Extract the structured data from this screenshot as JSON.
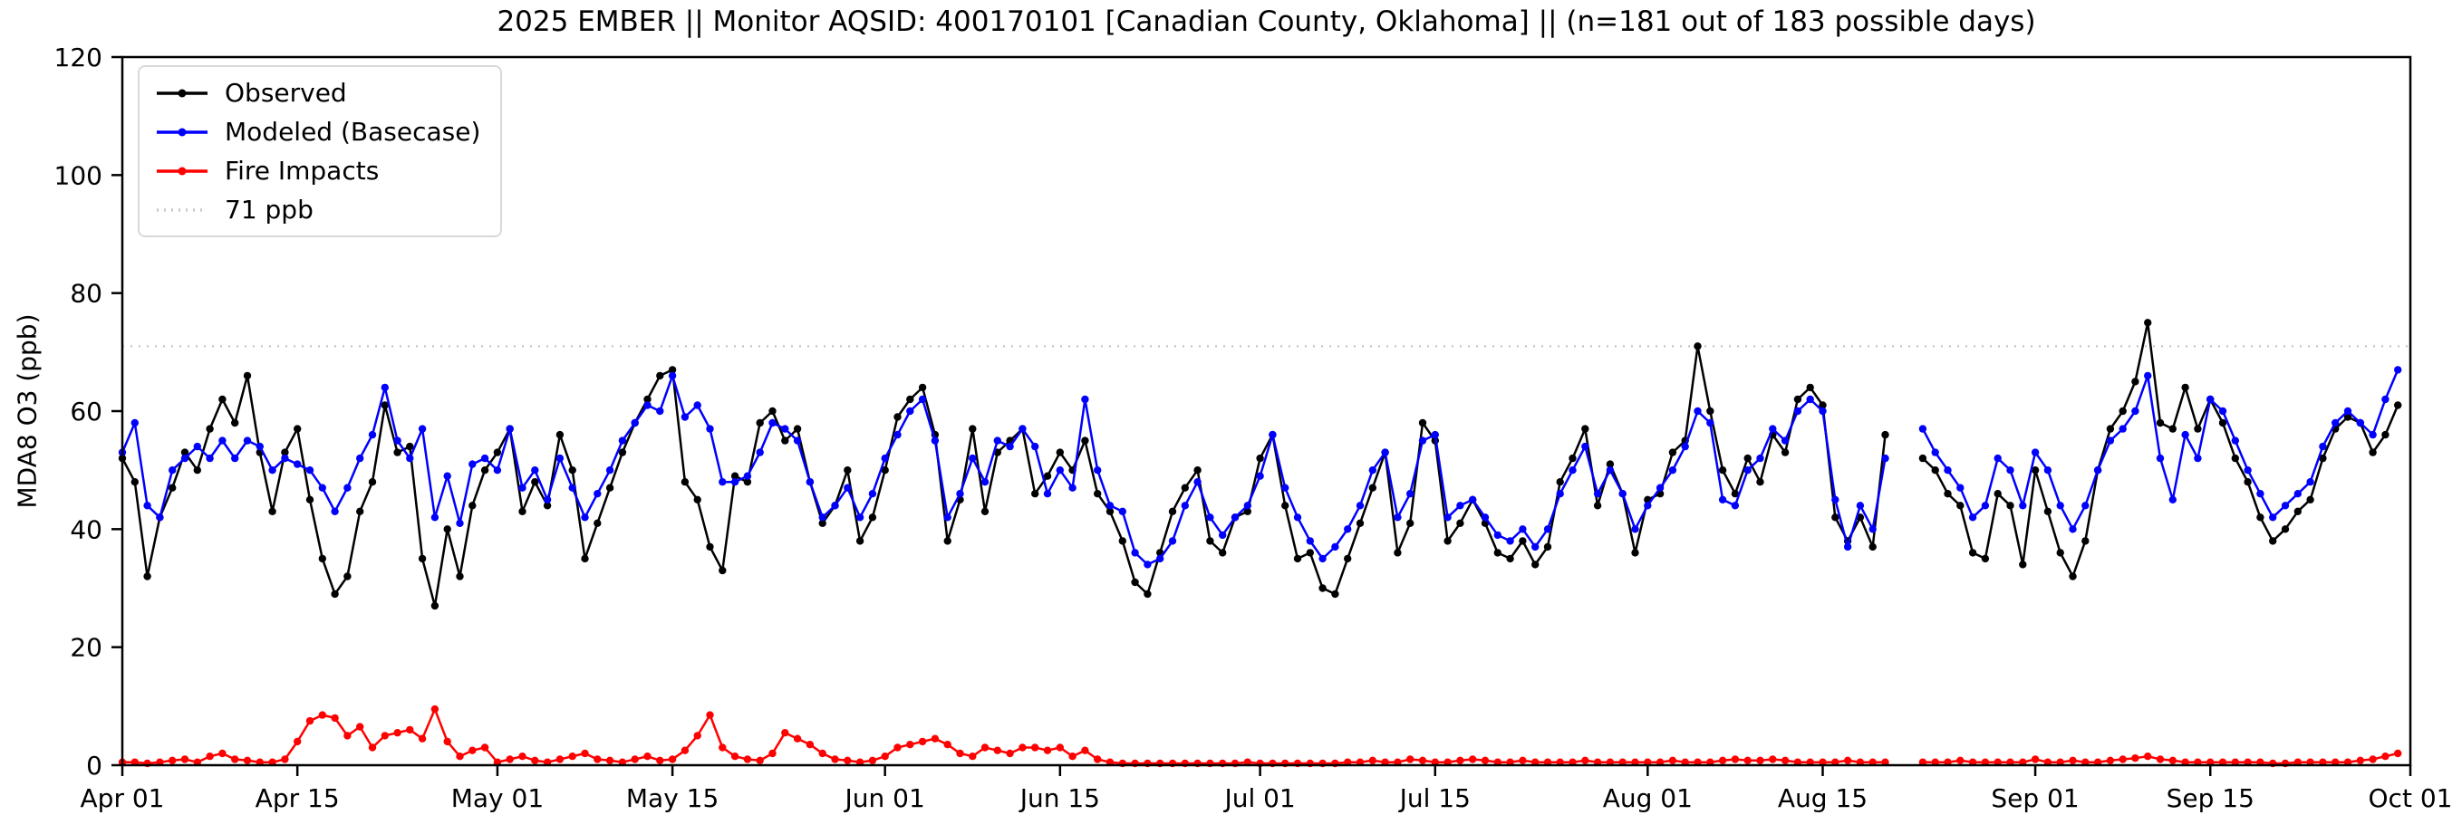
{
  "chart_data": {
    "type": "line",
    "title": "2025 EMBER || Monitor AQSID: 400170101 [Canadian County, Oklahoma] || (n=181 out of 183 possible days)",
    "xlabel": "",
    "ylabel": "MDA8 O3 (ppb)",
    "ylim": [
      0,
      120
    ],
    "y_ticks": [
      0,
      20,
      40,
      60,
      80,
      100,
      120
    ],
    "grid": false,
    "legend_position": "upper left",
    "x_start": "Apr 01",
    "x_end": "Oct 01",
    "x_unit": "day",
    "x_range_days": 183,
    "n_label": "n=181 out of 183 possible days",
    "x_ticks": [
      {
        "label": "Apr 01",
        "day": 0
      },
      {
        "label": "Apr 15",
        "day": 14
      },
      {
        "label": "May 01",
        "day": 30
      },
      {
        "label": "May 15",
        "day": 44
      },
      {
        "label": "Jun 01",
        "day": 61
      },
      {
        "label": "Jun 15",
        "day": 75
      },
      {
        "label": "Jul 01",
        "day": 91
      },
      {
        "label": "Jul 15",
        "day": 105
      },
      {
        "label": "Aug 01",
        "day": 122
      },
      {
        "label": "Aug 15",
        "day": 136
      },
      {
        "label": "Sep 01",
        "day": 153
      },
      {
        "label": "Sep 15",
        "day": 167
      },
      {
        "label": "Oct 01",
        "day": 183
      }
    ],
    "threshold": {
      "label": "71 ppb",
      "value": 71,
      "color": "#c9c9c9",
      "style": "dotted"
    },
    "legend": [
      {
        "label": "Observed",
        "color": "#000000",
        "style": "solid",
        "marker": true
      },
      {
        "label": "Modeled (Basecase)",
        "color": "#0000ff",
        "style": "solid",
        "marker": true
      },
      {
        "label": "Fire Impacts",
        "color": "#ff0000",
        "style": "solid",
        "marker": true
      },
      {
        "label": "71 ppb",
        "color": "#c9c9c9",
        "style": "dotted",
        "marker": false
      }
    ],
    "series": [
      {
        "name": "Observed",
        "color": "#000000",
        "values": [
          52,
          48,
          32,
          42,
          47,
          53,
          50,
          57,
          62,
          58,
          66,
          53,
          43,
          53,
          57,
          45,
          35,
          29,
          32,
          43,
          48,
          61,
          53,
          54,
          35,
          27,
          40,
          32,
          44,
          50,
          53,
          57,
          43,
          48,
          44,
          56,
          50,
          35,
          41,
          47,
          53,
          58,
          62,
          66,
          67,
          48,
          45,
          37,
          33,
          49,
          48,
          58,
          60,
          55,
          57,
          48,
          41,
          44,
          50,
          38,
          42,
          50,
          59,
          62,
          64,
          56,
          38,
          45,
          57,
          43,
          53,
          55,
          57,
          46,
          49,
          53,
          50,
          55,
          46,
          43,
          38,
          31,
          29,
          36,
          43,
          47,
          50,
          38,
          36,
          42,
          43,
          52,
          56,
          44,
          35,
          36,
          30,
          29,
          35,
          41,
          47,
          53,
          36,
          41,
          58,
          55,
          38,
          41,
          45,
          41,
          36,
          35,
          38,
          34,
          37,
          48,
          52,
          57,
          44,
          51,
          46,
          36,
          45,
          46,
          53,
          55,
          71,
          60,
          50,
          46,
          52,
          48,
          56,
          53,
          62,
          64,
          61,
          42,
          38,
          42,
          37,
          56,
          null,
          null,
          52,
          50,
          46,
          44,
          36,
          35,
          46,
          44,
          34,
          50,
          43,
          36,
          32,
          38,
          50,
          57,
          60,
          65,
          75,
          58,
          57,
          64,
          57,
          62,
          58,
          52,
          48,
          42,
          38,
          40,
          43,
          45,
          52,
          57,
          59,
          58,
          53,
          56,
          61
        ]
      },
      {
        "name": "Modeled (Basecase)",
        "color": "#0000ff",
        "values": [
          53,
          58,
          44,
          42,
          50,
          52,
          54,
          52,
          55,
          52,
          55,
          54,
          50,
          52,
          51,
          50,
          47,
          43,
          47,
          52,
          56,
          64,
          55,
          52,
          57,
          42,
          49,
          41,
          51,
          52,
          50,
          57,
          47,
          50,
          45,
          52,
          47,
          42,
          46,
          50,
          55,
          58,
          61,
          60,
          66,
          59,
          61,
          57,
          48,
          48,
          49,
          53,
          58,
          57,
          55,
          48,
          42,
          44,
          47,
          42,
          46,
          52,
          56,
          60,
          62,
          55,
          42,
          46,
          52,
          48,
          55,
          54,
          57,
          54,
          46,
          50,
          47,
          62,
          50,
          44,
          43,
          36,
          34,
          35,
          38,
          44,
          48,
          42,
          39,
          42,
          44,
          49,
          56,
          47,
          42,
          38,
          35,
          37,
          40,
          44,
          50,
          53,
          42,
          46,
          55,
          56,
          42,
          44,
          45,
          42,
          39,
          38,
          40,
          37,
          40,
          46,
          50,
          54,
          46,
          50,
          46,
          40,
          44,
          47,
          50,
          54,
          60,
          58,
          45,
          44,
          50,
          52,
          57,
          55,
          60,
          62,
          60,
          45,
          37,
          44,
          40,
          52,
          null,
          null,
          57,
          53,
          50,
          47,
          42,
          44,
          52,
          50,
          44,
          53,
          50,
          44,
          40,
          44,
          50,
          55,
          57,
          60,
          66,
          52,
          45,
          56,
          52,
          62,
          60,
          55,
          50,
          46,
          42,
          44,
          46,
          48,
          54,
          58,
          60,
          58,
          56,
          62,
          67
        ]
      },
      {
        "name": "Fire Impacts",
        "color": "#ff0000",
        "values": [
          0.5,
          0.5,
          0.3,
          0.5,
          0.8,
          1,
          0.5,
          1.5,
          2,
          1,
          0.8,
          0.5,
          0.5,
          1,
          4,
          7.5,
          8.5,
          8,
          5,
          6.5,
          3,
          5,
          5.5,
          6,
          4.5,
          9.5,
          4,
          1.5,
          2.5,
          3,
          0.5,
          1,
          1.5,
          0.8,
          0.5,
          1,
          1.5,
          2,
          1,
          0.8,
          0.5,
          1,
          1.5,
          0.8,
          1,
          2.5,
          5,
          8.5,
          3,
          1.5,
          1,
          0.8,
          2,
          5.5,
          4.5,
          3.5,
          2,
          1,
          0.8,
          0.5,
          0.8,
          1.5,
          3,
          3.5,
          4,
          4.5,
          3.5,
          2,
          1.5,
          3,
          2.5,
          2,
          3,
          3,
          2.5,
          3,
          1.5,
          2.5,
          1,
          0.5,
          0.3,
          0.3,
          0.3,
          0.3,
          0.3,
          0.3,
          0.3,
          0.3,
          0.3,
          0.3,
          0.5,
          0.3,
          0.3,
          0.3,
          0.3,
          0.3,
          0.3,
          0.3,
          0.5,
          0.5,
          0.8,
          0.5,
          0.5,
          1,
          0.8,
          0.5,
          0.5,
          0.8,
          1,
          0.8,
          0.5,
          0.5,
          0.8,
          0.5,
          0.5,
          0.5,
          0.5,
          0.8,
          0.5,
          0.5,
          0.5,
          0.5,
          0.5,
          0.5,
          0.8,
          0.5,
          0.5,
          0.5,
          0.8,
          1,
          0.8,
          0.8,
          1,
          0.8,
          0.5,
          0.5,
          0.5,
          0.5,
          0.8,
          0.5,
          0.5,
          0.5,
          null,
          null,
          0.5,
          0.5,
          0.5,
          0.8,
          0.5,
          0.5,
          0.5,
          0.5,
          0.5,
          1,
          0.5,
          0.5,
          0.8,
          0.5,
          0.5,
          0.8,
          1,
          1.2,
          1.5,
          1,
          0.8,
          0.5,
          0.5,
          0.5,
          0.5,
          0.5,
          0.5,
          0.5,
          0.3,
          0.3,
          0.5,
          0.5,
          0.5,
          0.5,
          0.5,
          0.8,
          1,
          1.5,
          2
        ]
      }
    ]
  }
}
